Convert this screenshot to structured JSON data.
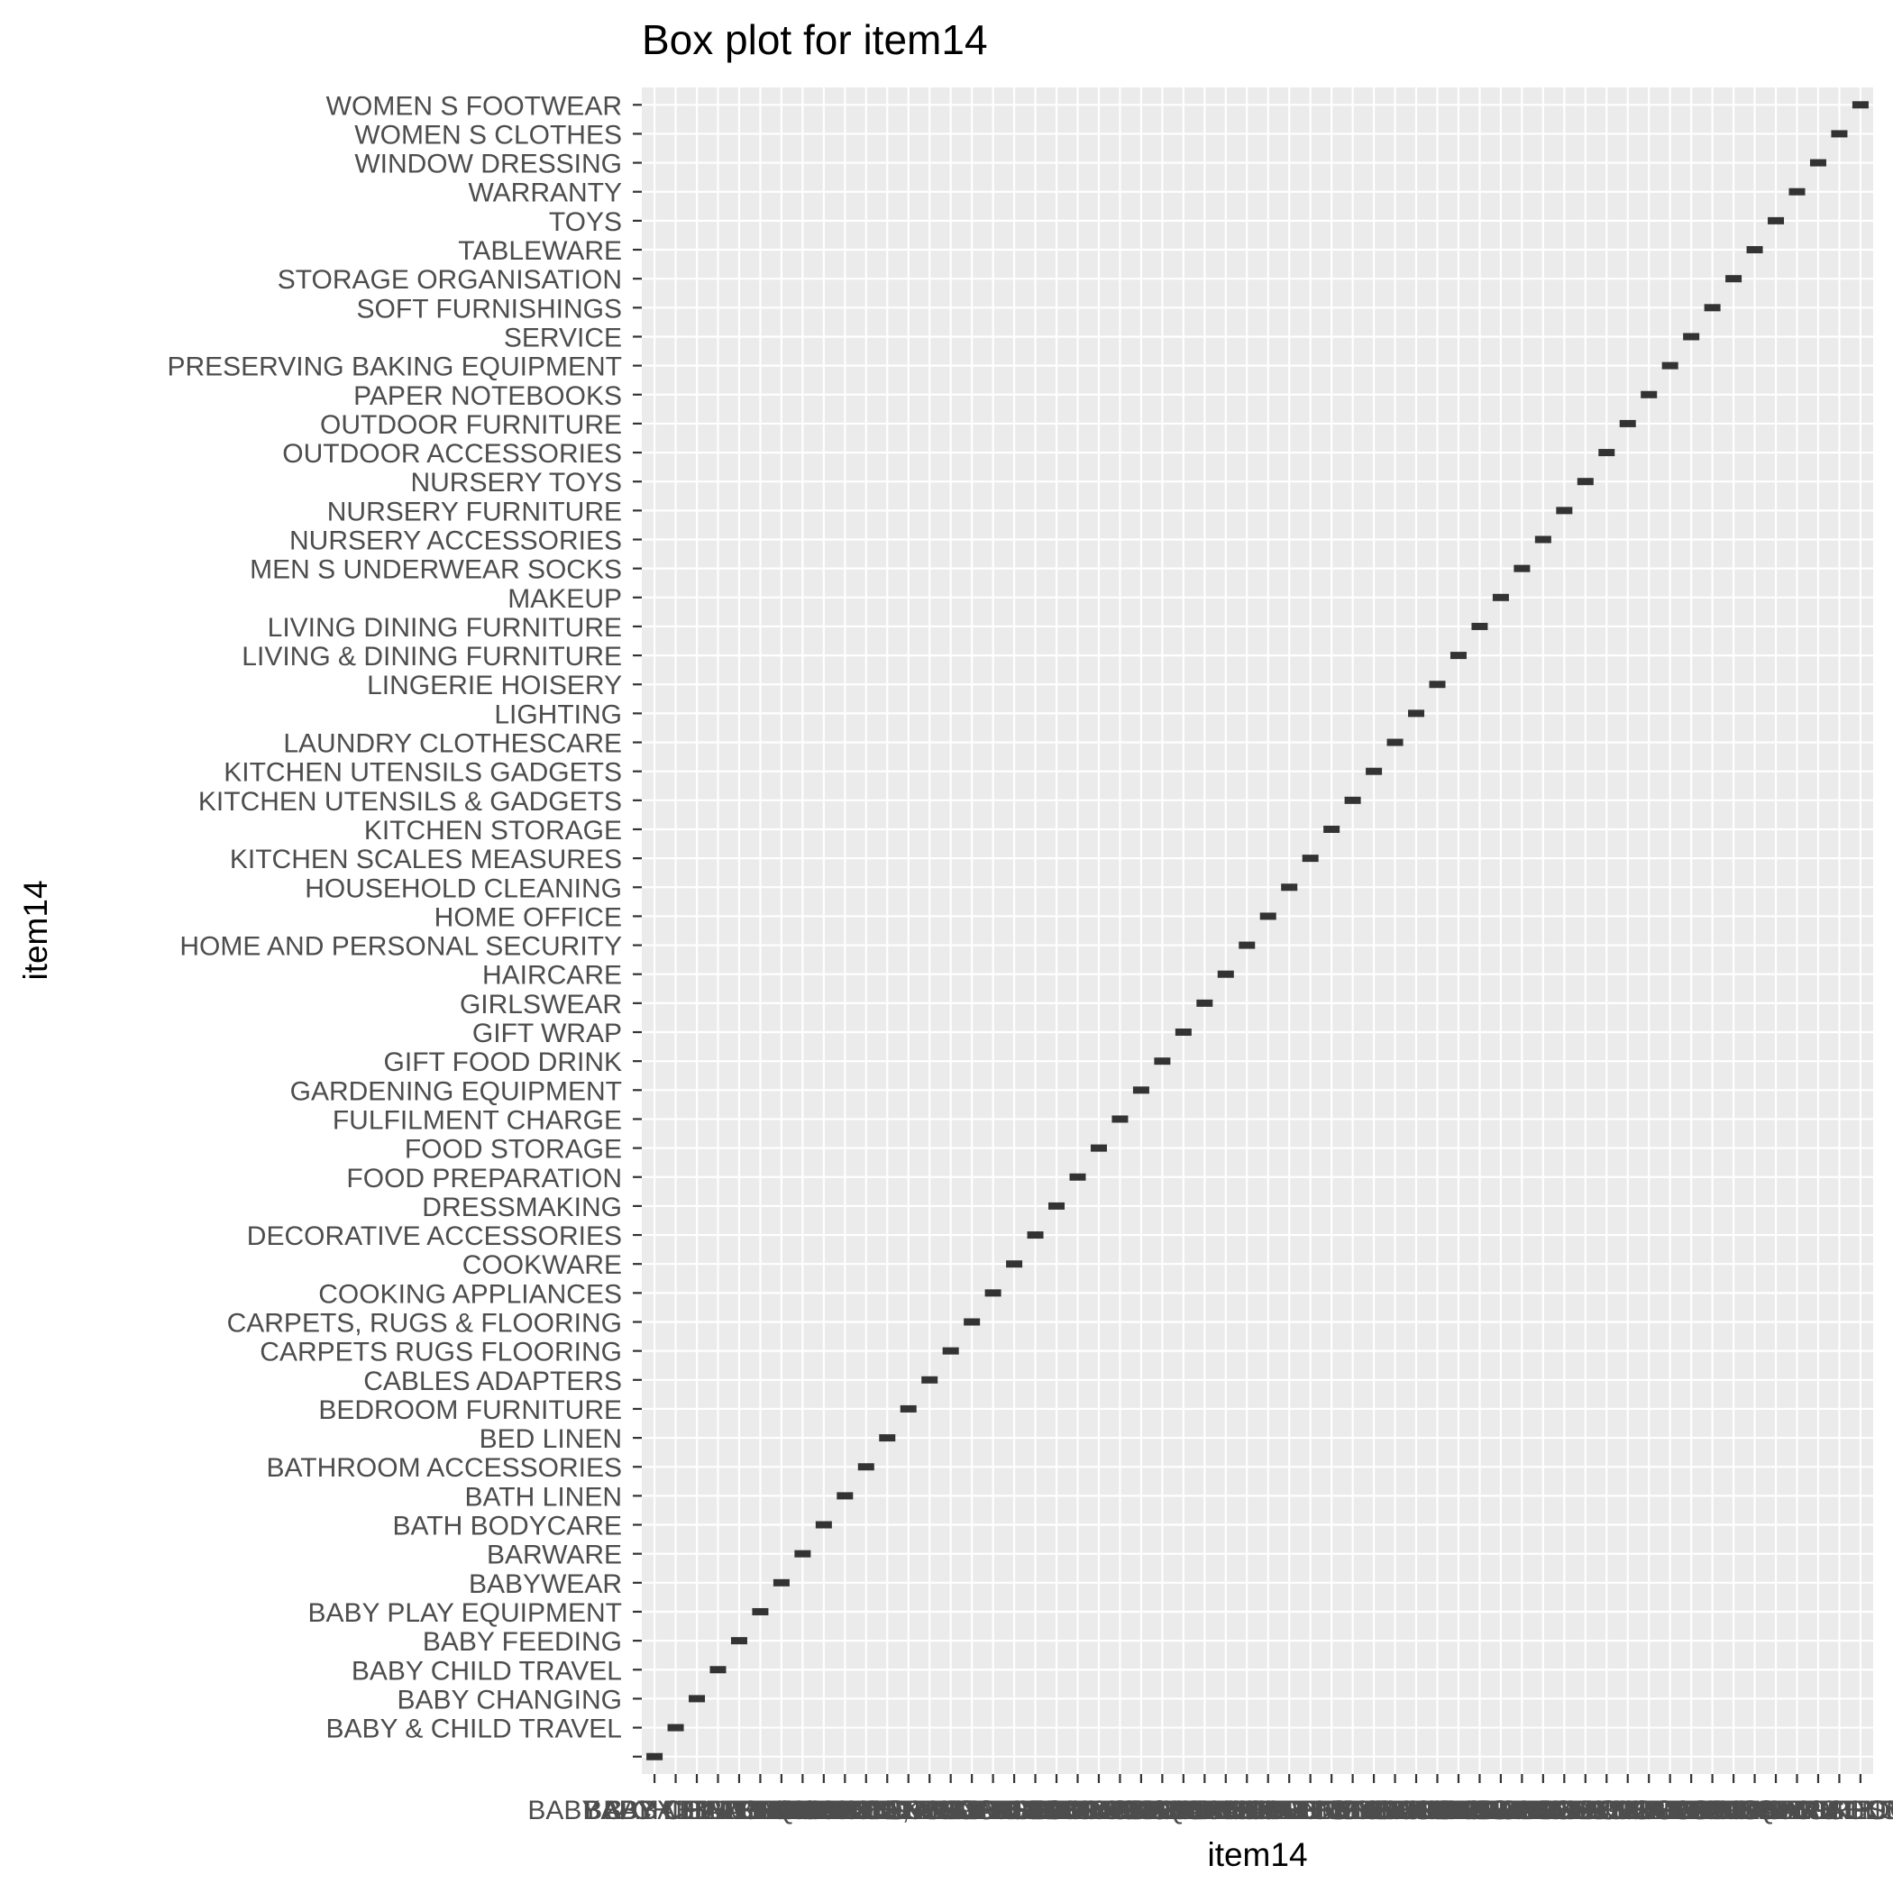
{
  "chart_data": {
    "type": "boxplot",
    "title": "Box plot for item14",
    "xlabel": "item14",
    "ylabel": "item14",
    "grid": true,
    "categories": [
      "",
      "BABY & CHILD TRAVEL",
      "BABY CHANGING",
      "BABY CHILD TRAVEL",
      "BABY FEEDING",
      "BABY PLAY EQUIPMENT",
      "BABYWEAR",
      "BARWARE",
      "BATH BODYCARE",
      "BATH LINEN",
      "BATHROOM ACCESSORIES",
      "BED LINEN",
      "BEDROOM FURNITURE",
      "CABLES ADAPTERS",
      "CARPETS RUGS FLOORING",
      "CARPETS, RUGS & FLOORING",
      "COOKING APPLIANCES",
      "COOKWARE",
      "DECORATIVE ACCESSORIES",
      "DRESSMAKING",
      "FOOD PREPARATION",
      "FOOD STORAGE",
      "FULFILMENT CHARGE",
      "GARDENING EQUIPMENT",
      "GIFT FOOD DRINK",
      "GIFT WRAP",
      "GIRLSWEAR",
      "HAIRCARE",
      "HOME AND PERSONAL SECURITY",
      "HOME OFFICE",
      "HOUSEHOLD CLEANING",
      "KITCHEN SCALES MEASURES",
      "KITCHEN STORAGE",
      "KITCHEN UTENSILS & GADGETS",
      "KITCHEN UTENSILS GADGETS",
      "LAUNDRY CLOTHESCARE",
      "LIGHTING",
      "LINGERIE HOISERY",
      "LIVING & DINING FURNITURE",
      "LIVING DINING FURNITURE",
      "MAKEUP",
      "MEN S UNDERWEAR SOCKS",
      "NURSERY ACCESSORIES",
      "NURSERY FURNITURE",
      "NURSERY TOYS",
      "OUTDOOR ACCESSORIES",
      "OUTDOOR FURNITURE",
      "PAPER NOTEBOOKS",
      "PRESERVING BAKING EQUIPMENT",
      "SERVICE",
      "SOFT FURNISHINGS",
      "STORAGE ORGANISATION",
      "TABLEWARE",
      "TOYS",
      "WARRANTY",
      "WINDOW DRESSING",
      "WOMEN S CLOTHES",
      "WOMEN S FOOTWEAR"
    ],
    "x_tick_label_first": "BABY",
    "colors": {
      "panel": "#ebebeb",
      "grid": "#ffffff",
      "box": "#333333",
      "axis_text": "#4d4d4d"
    }
  }
}
